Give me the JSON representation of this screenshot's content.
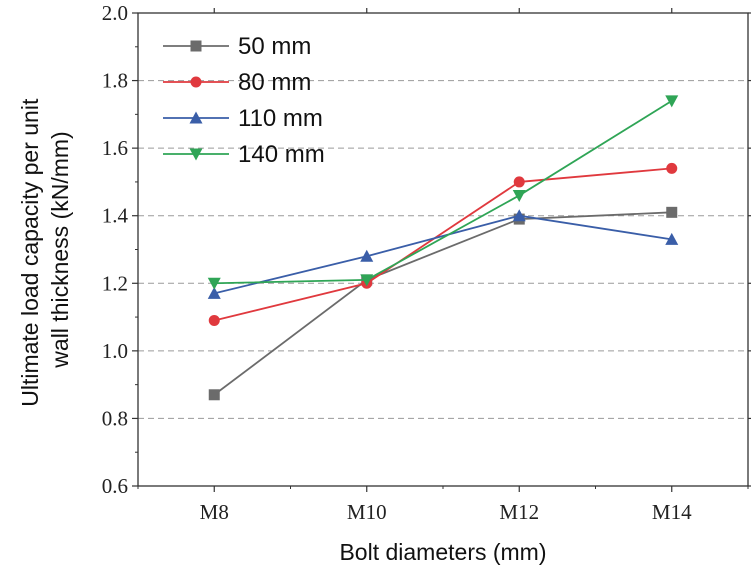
{
  "chart_data": {
    "type": "line",
    "xlabel": "Bolt diameters (mm)",
    "ylabel_lines": [
      "Ultimate load capacity per unit",
      "wall thickness (kN/mm)"
    ],
    "categories": [
      "M8",
      "M10",
      "M12",
      "M14"
    ],
    "ylim": [
      0.6,
      2.0
    ],
    "yticks": [
      "0.6",
      "0.8",
      "1.0",
      "1.2",
      "1.4",
      "1.6",
      "1.8",
      "2.0"
    ],
    "grid": "horizontal-dashed",
    "legend_position": "top-left",
    "series": [
      {
        "name": "50 mm",
        "color": "#6b6b6b",
        "marker": "square",
        "values": [
          0.87,
          1.21,
          1.39,
          1.41
        ]
      },
      {
        "name": "80 mm",
        "color": "#e0393e",
        "marker": "circle",
        "values": [
          1.09,
          1.2,
          1.5,
          1.54
        ]
      },
      {
        "name": "110 mm",
        "color": "#3a5ea8",
        "marker": "triangle-up",
        "values": [
          1.17,
          1.28,
          1.4,
          1.33
        ]
      },
      {
        "name": "140 mm",
        "color": "#2fa556",
        "marker": "triangle-down",
        "values": [
          1.2,
          1.21,
          1.46,
          1.74
        ]
      }
    ]
  }
}
